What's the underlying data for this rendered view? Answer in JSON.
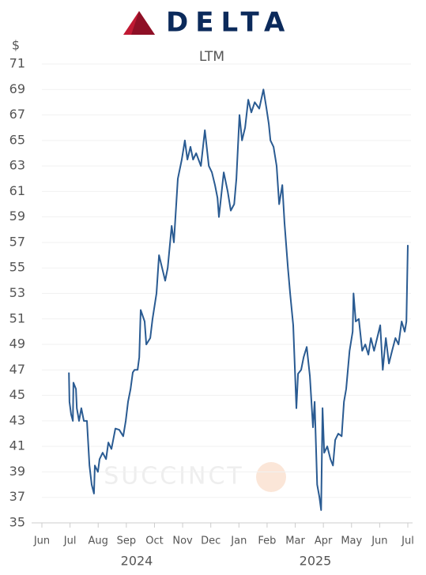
{
  "header": {
    "logo_text": "DELTA"
  },
  "chart_data": {
    "type": "line",
    "subtitle": "LTM",
    "y_label": "$",
    "watermark": "SUCCINCT",
    "year_labels": [
      "2024",
      "2025"
    ],
    "xlim": [
      0,
      13
    ],
    "xticks": [
      {
        "value": 0,
        "label": "Jun"
      },
      {
        "value": 1,
        "label": "Jul"
      },
      {
        "value": 2,
        "label": "Aug"
      },
      {
        "value": 3,
        "label": "Sep"
      },
      {
        "value": 4,
        "label": "Oct"
      },
      {
        "value": 5,
        "label": "Nov"
      },
      {
        "value": 6,
        "label": "Dec"
      },
      {
        "value": 7,
        "label": "Jan"
      },
      {
        "value": 8,
        "label": "Feb"
      },
      {
        "value": 9,
        "label": "Mar"
      },
      {
        "value": 10,
        "label": "Apr"
      },
      {
        "value": 11,
        "label": "May"
      },
      {
        "value": 12,
        "label": "Jun"
      },
      {
        "value": 13,
        "label": "Jul"
      }
    ],
    "ylim": [
      35,
      71
    ],
    "yticks": [
      35,
      37,
      39,
      41,
      43,
      45,
      47,
      49,
      51,
      53,
      55,
      57,
      59,
      61,
      63,
      65,
      67,
      69,
      71
    ],
    "grid": true,
    "color": "#2a5b92",
    "x": [
      0.96,
      0.98,
      1.04,
      1.1,
      1.12,
      1.21,
      1.24,
      1.32,
      1.4,
      1.49,
      1.6,
      1.69,
      1.77,
      1.85,
      1.88,
      1.99,
      2.05,
      2.16,
      2.28,
      2.36,
      2.47,
      2.61,
      2.75,
      2.89,
      2.98,
      3.06,
      3.15,
      3.23,
      3.29,
      3.4,
      3.46,
      3.51,
      3.65,
      3.71,
      3.85,
      3.93,
      4.07,
      4.16,
      4.27,
      4.38,
      4.47,
      4.61,
      4.69,
      4.83,
      4.97,
      5.08,
      5.17,
      5.28,
      5.37,
      5.48,
      5.65,
      5.79,
      5.93,
      6.04,
      6.15,
      6.24,
      6.29,
      6.46,
      6.6,
      6.71,
      6.83,
      6.91,
      7.02,
      7.11,
      7.22,
      7.33,
      7.44,
      7.56,
      7.72,
      7.87,
      7.98,
      8.06,
      8.12,
      8.23,
      8.34,
      8.43,
      8.54,
      8.62,
      8.74,
      8.82,
      8.93,
      9.04,
      9.1,
      9.21,
      9.3,
      9.41,
      9.52,
      9.63,
      9.69,
      9.78,
      9.86,
      9.92,
      9.97,
      10.03,
      10.14,
      10.25,
      10.34,
      10.42,
      10.53,
      10.65,
      10.73,
      10.81,
      10.93,
      11.04,
      11.07,
      11.15,
      11.26,
      11.38,
      11.49,
      11.6,
      11.69,
      11.8,
      11.91,
      12.02,
      12.11,
      12.22,
      12.33,
      12.44,
      12.56,
      12.67,
      12.78,
      12.89,
      12.95,
      13.0
    ],
    "values": [
      46.8,
      44.5,
      43.5,
      43.0,
      46.0,
      45.5,
      44.0,
      43.0,
      44.0,
      43.0,
      43.0,
      39.5,
      38.0,
      37.3,
      39.5,
      39.0,
      40.0,
      40.5,
      40.0,
      41.3,
      40.8,
      42.4,
      42.3,
      41.8,
      43.0,
      44.5,
      45.5,
      46.8,
      47.0,
      47.0,
      48.0,
      51.7,
      50.8,
      49.0,
      49.5,
      51.0,
      53.0,
      56.0,
      55.0,
      54.0,
      55.0,
      58.3,
      57.0,
      62.0,
      63.5,
      65.0,
      63.5,
      64.5,
      63.5,
      64.0,
      63.0,
      65.8,
      63.0,
      62.5,
      61.5,
      60.5,
      59.0,
      62.5,
      61.0,
      59.5,
      60.0,
      62.0,
      67.0,
      65.0,
      66.0,
      68.2,
      67.2,
      68.0,
      67.5,
      69.0,
      67.5,
      66.3,
      65.0,
      64.5,
      63.0,
      60.0,
      61.5,
      58.5,
      55.0,
      53.0,
      50.5,
      44.0,
      46.7,
      47.0,
      48.0,
      48.8,
      46.5,
      42.5,
      44.5,
      38.0,
      37.0,
      36.0,
      44.0,
      40.5,
      41.0,
      40.0,
      39.5,
      41.5,
      42.0,
      41.8,
      44.5,
      45.5,
      48.5,
      50.0,
      53.0,
      50.8,
      51.0,
      48.5,
      49.0,
      48.2,
      49.5,
      48.5,
      49.5,
      50.5,
      47.0,
      49.5,
      47.5,
      48.5,
      49.5,
      49.0,
      50.8,
      50.0,
      50.8,
      56.8
    ]
  }
}
